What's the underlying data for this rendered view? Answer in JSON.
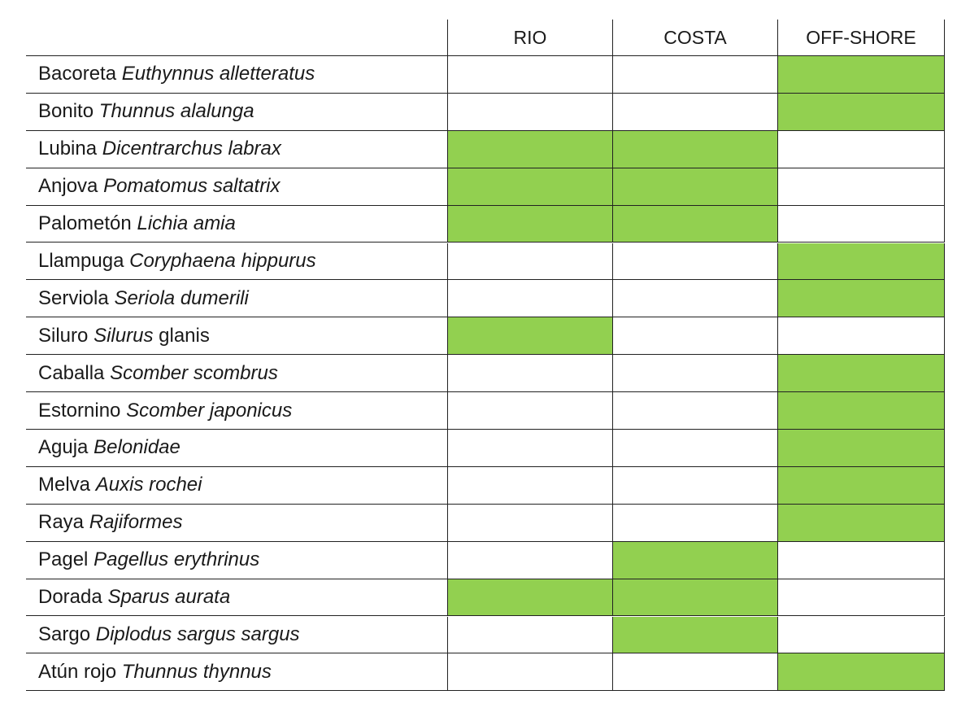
{
  "fill_color": "#92d050",
  "table": {
    "columns": [
      "RIO",
      "COSTA",
      "OFF-SHORE"
    ],
    "rows": [
      {
        "name": [
          {
            "text": "Bacoreta",
            "italic": false
          },
          {
            "text": "Euthynnus alletteratus",
            "italic": true
          }
        ],
        "cells": [
          false,
          false,
          true
        ]
      },
      {
        "name": [
          {
            "text": "Bonito",
            "italic": false
          },
          {
            "text": "Thunnus alalunga",
            "italic": true
          }
        ],
        "cells": [
          false,
          false,
          true
        ]
      },
      {
        "name": [
          {
            "text": "Lubina",
            "italic": false
          },
          {
            "text": "Dicentrarchus labrax",
            "italic": true
          }
        ],
        "cells": [
          true,
          true,
          false
        ]
      },
      {
        "name": [
          {
            "text": "Anjova",
            "italic": false
          },
          {
            "text": "Pomatomus saltatrix",
            "italic": true
          }
        ],
        "cells": [
          true,
          true,
          false
        ]
      },
      {
        "name": [
          {
            "text": "Palometón",
            "italic": false
          },
          {
            "text": "Lichia amia",
            "italic": true
          }
        ],
        "cells": [
          true,
          true,
          false
        ]
      },
      {
        "name": [
          {
            "text": "Llampuga",
            "italic": false
          },
          {
            "text": "Coryphaena hippurus",
            "italic": true
          }
        ],
        "cells": [
          false,
          false,
          true
        ]
      },
      {
        "name": [
          {
            "text": "Serviola",
            "italic": false
          },
          {
            "text": "Seriola dumerili",
            "italic": true
          }
        ],
        "cells": [
          false,
          false,
          true
        ]
      },
      {
        "name": [
          {
            "text": "Siluro",
            "italic": false
          },
          {
            "text": "Silurus",
            "italic": true
          },
          {
            "text": "glanis",
            "italic": false
          }
        ],
        "cells": [
          true,
          false,
          false
        ]
      },
      {
        "name": [
          {
            "text": "Caballa",
            "italic": false
          },
          {
            "text": "Scomber scombrus",
            "italic": true
          }
        ],
        "cells": [
          false,
          false,
          true
        ]
      },
      {
        "name": [
          {
            "text": "Estornino",
            "italic": false
          },
          {
            "text": "Scomber japonicus",
            "italic": true
          }
        ],
        "cells": [
          false,
          false,
          true
        ]
      },
      {
        "name": [
          {
            "text": "Aguja",
            "italic": false
          },
          {
            "text": "Belonidae",
            "italic": true
          }
        ],
        "cells": [
          false,
          false,
          true
        ]
      },
      {
        "name": [
          {
            "text": "Melva",
            "italic": false
          },
          {
            "text": "Auxis rochei",
            "italic": true
          }
        ],
        "cells": [
          false,
          false,
          true
        ]
      },
      {
        "name": [
          {
            "text": "Raya",
            "italic": false
          },
          {
            "text": "Rajiformes",
            "italic": true
          }
        ],
        "cells": [
          false,
          false,
          true
        ]
      },
      {
        "name": [
          {
            "text": "Pagel",
            "italic": false
          },
          {
            "text": "Pagellus erythrinus",
            "italic": true
          }
        ],
        "cells": [
          false,
          true,
          false
        ]
      },
      {
        "name": [
          {
            "text": "Dorada",
            "italic": false
          },
          {
            "text": "Sparus aurata",
            "italic": true
          }
        ],
        "cells": [
          true,
          true,
          false
        ]
      },
      {
        "name": [
          {
            "text": "Sargo",
            "italic": false
          },
          {
            "text": "Diplodus sargus sargus",
            "italic": true
          }
        ],
        "cells": [
          false,
          true,
          false
        ]
      },
      {
        "name": [
          {
            "text": "Atún rojo",
            "italic": false
          },
          {
            "text": "Thunnus thynnus",
            "italic": true
          }
        ],
        "cells": [
          false,
          false,
          true
        ]
      }
    ]
  }
}
